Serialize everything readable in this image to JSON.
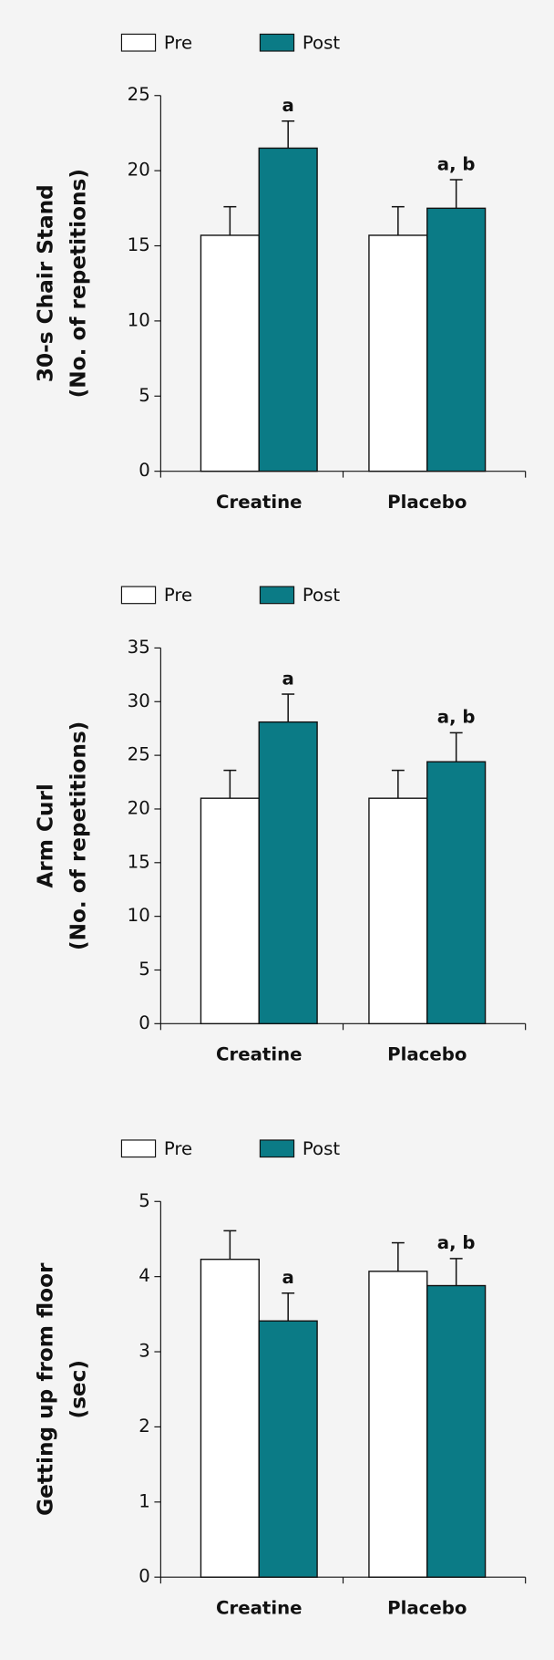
{
  "chart_data": [
    {
      "type": "bar",
      "ylabel": [
        "30-s Chair Stand",
        "(No. of repetitions)"
      ],
      "categories": [
        "Creatine",
        "Placebo"
      ],
      "series": [
        {
          "name": "Pre",
          "color": "#ffffff",
          "values": [
            15.7,
            15.7
          ],
          "errors": [
            1.9,
            1.9
          ]
        },
        {
          "name": "Post",
          "color": "#0b7b86",
          "values": [
            21.5,
            17.5
          ],
          "errors": [
            1.8,
            1.9
          ],
          "annotations": [
            "a",
            "a, b"
          ]
        }
      ],
      "ylim": [
        0,
        25
      ],
      "yticks": [
        0,
        5,
        10,
        15,
        20,
        25
      ]
    },
    {
      "type": "bar",
      "ylabel": [
        "Arm Curl",
        "(No. of repetitions)"
      ],
      "categories": [
        "Creatine",
        "Placebo"
      ],
      "series": [
        {
          "name": "Pre",
          "color": "#ffffff",
          "values": [
            21.0,
            21.0
          ],
          "errors": [
            2.6,
            2.6
          ]
        },
        {
          "name": "Post",
          "color": "#0b7b86",
          "values": [
            28.1,
            24.4
          ],
          "errors": [
            2.6,
            2.7
          ],
          "annotations": [
            "a",
            "a, b"
          ]
        }
      ],
      "ylim": [
        0,
        35
      ],
      "yticks": [
        0,
        5,
        10,
        15,
        20,
        25,
        30,
        35
      ]
    },
    {
      "type": "bar",
      "ylabel": [
        "Getting up from floor",
        "(sec)"
      ],
      "categories": [
        "Creatine",
        "Placebo"
      ],
      "series": [
        {
          "name": "Pre",
          "color": "#ffffff",
          "values": [
            4.23,
            4.07
          ],
          "errors": [
            0.38,
            0.38
          ]
        },
        {
          "name": "Post",
          "color": "#0b7b86",
          "values": [
            3.41,
            3.88
          ],
          "errors": [
            0.37,
            0.36
          ],
          "annotations": [
            "a",
            "a, b"
          ]
        }
      ],
      "ylim": [
        0,
        5
      ],
      "yticks": [
        0,
        1,
        2,
        3,
        4,
        5
      ]
    }
  ]
}
